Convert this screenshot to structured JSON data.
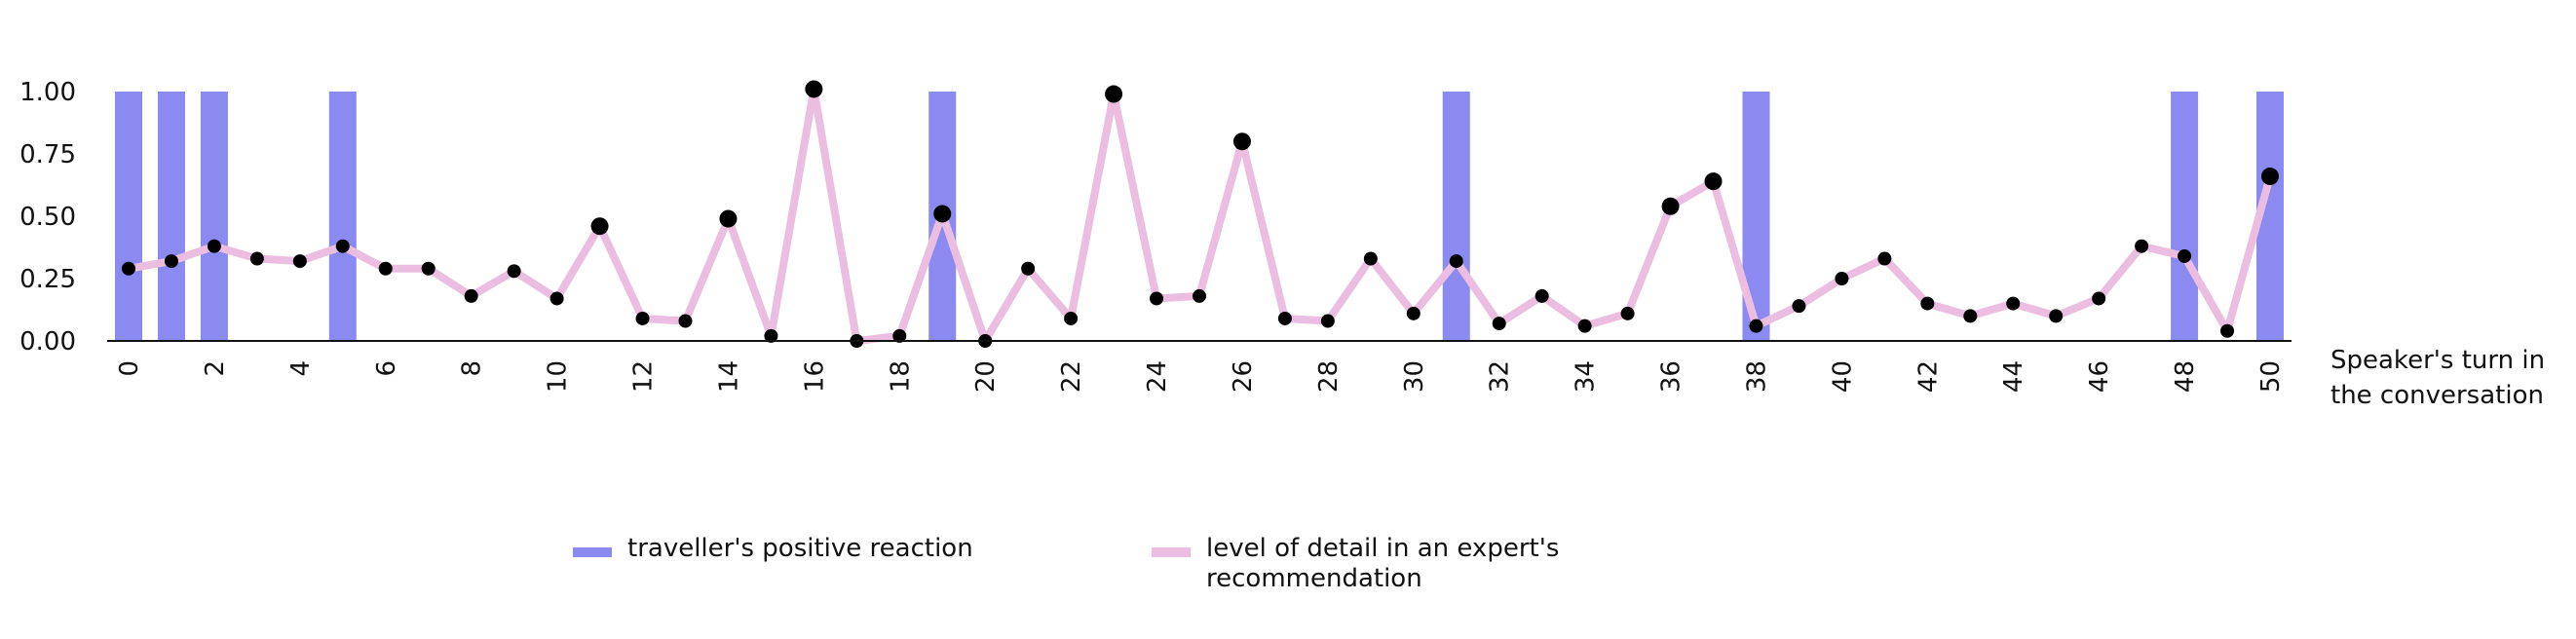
{
  "chart_data": {
    "type": "bar+line",
    "x_axis": {
      "title_line1": "Speaker's turn in",
      "title_line2": "the conversation",
      "range": [
        0,
        50
      ],
      "tick_values": [
        0,
        2,
        4,
        6,
        8,
        10,
        12,
        14,
        16,
        18,
        20,
        22,
        24,
        26,
        28,
        30,
        32,
        34,
        36,
        38,
        40,
        42,
        44,
        46,
        48,
        50
      ],
      "tick_rotation": "vertical"
    },
    "y_axis": {
      "range": [
        0,
        1
      ],
      "tick_labels": [
        "0.00",
        "0.25",
        "0.50",
        "0.75",
        "1.00"
      ],
      "tick_values": [
        0,
        0.25,
        0.5,
        0.75,
        1.0
      ]
    },
    "grid": false,
    "legend_placement": "bottom",
    "series": [
      {
        "name": "traveller's positive reaction",
        "type": "bar",
        "color": "#8a8af0",
        "x": [
          0,
          1,
          2,
          5,
          19,
          31,
          38,
          48,
          50
        ],
        "values": [
          1,
          1,
          1,
          1,
          1,
          1,
          1,
          1,
          1
        ]
      },
      {
        "name": "level of detail in an expert's recommendation",
        "type": "line",
        "line_color": "#ebbde0",
        "marker_color": "#000000",
        "x": [
          0,
          1,
          2,
          3,
          4,
          5,
          6,
          7,
          8,
          9,
          10,
          11,
          12,
          13,
          14,
          15,
          16,
          17,
          18,
          19,
          20,
          21,
          22,
          23,
          24,
          25,
          26,
          27,
          28,
          29,
          30,
          31,
          32,
          33,
          34,
          35,
          36,
          37,
          38,
          39,
          40,
          41,
          42,
          43,
          44,
          45,
          46,
          47,
          48,
          49,
          50
        ],
        "values": [
          0.29,
          0.32,
          0.38,
          0.33,
          0.32,
          0.38,
          0.29,
          0.29,
          0.18,
          0.28,
          0.17,
          0.46,
          0.09,
          0.08,
          0.49,
          0.02,
          1.01,
          0.0,
          0.02,
          0.51,
          0.0,
          0.29,
          0.09,
          0.99,
          0.17,
          0.18,
          0.8,
          0.09,
          0.08,
          0.33,
          0.11,
          0.32,
          0.07,
          0.18,
          0.06,
          0.11,
          0.54,
          0.64,
          0.06,
          0.14,
          0.25,
          0.33,
          0.15,
          0.1,
          0.15,
          0.1,
          0.17,
          0.38,
          0.34,
          0.04,
          0.66
        ]
      }
    ]
  },
  "legend": {
    "bar_label": "traveller's positive reaction",
    "line_label": "level of detail in an expert's recommendation"
  }
}
